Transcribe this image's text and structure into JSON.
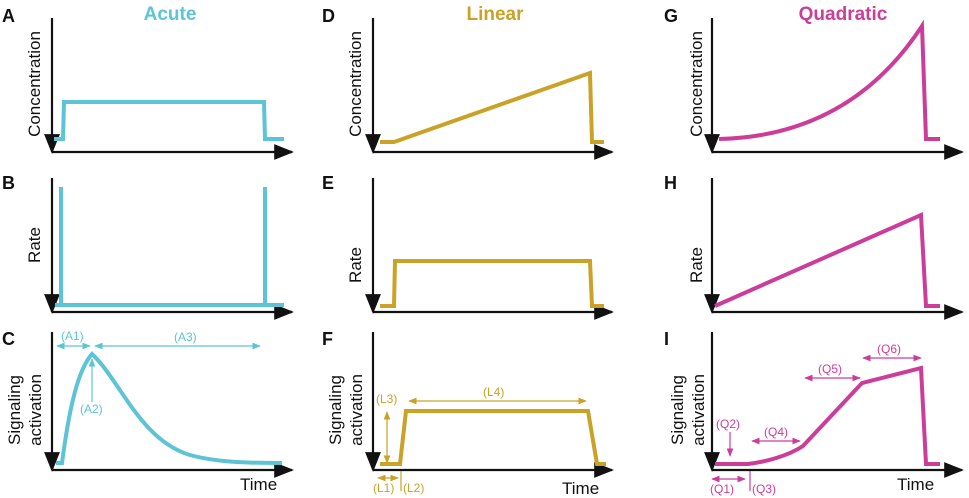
{
  "colors": {
    "acute": "#5cc4d6",
    "linear": "#c9a227",
    "quadratic": "#cc3d9a",
    "axis": "#111111"
  },
  "columns": [
    {
      "title": "Acute",
      "color_key": "acute",
      "panels": [
        {
          "letter": "A",
          "ylabel": [
            "Concentration"
          ]
        },
        {
          "letter": "B",
          "ylabel": [
            "Rate"
          ]
        },
        {
          "letter": "C",
          "ylabel": [
            "Signaling",
            "activation"
          ],
          "xlabel": "Time",
          "annotations": [
            "(A1)",
            "(A2)",
            "(A3)"
          ]
        }
      ]
    },
    {
      "title": "Linear",
      "color_key": "linear",
      "panels": [
        {
          "letter": "D",
          "ylabel": [
            "Concentration"
          ]
        },
        {
          "letter": "E",
          "ylabel": [
            "Rate"
          ]
        },
        {
          "letter": "F",
          "ylabel": [
            "Signaling",
            "activation"
          ],
          "xlabel": "Time",
          "annotations": [
            "(L1)",
            "(L2)",
            "(L3)",
            "(L4)"
          ]
        }
      ]
    },
    {
      "title": "Quadratic",
      "color_key": "quadratic",
      "panels": [
        {
          "letter": "G",
          "ylabel": [
            "Concentration"
          ]
        },
        {
          "letter": "H",
          "ylabel": [
            "Rate"
          ]
        },
        {
          "letter": "I",
          "ylabel": [
            "Signaling",
            "activation"
          ],
          "xlabel": "Time",
          "annotations": [
            "(Q1)",
            "(Q2)",
            "(Q3)",
            "(Q4)",
            "(Q5)",
            "(Q6)"
          ]
        }
      ]
    }
  ]
}
